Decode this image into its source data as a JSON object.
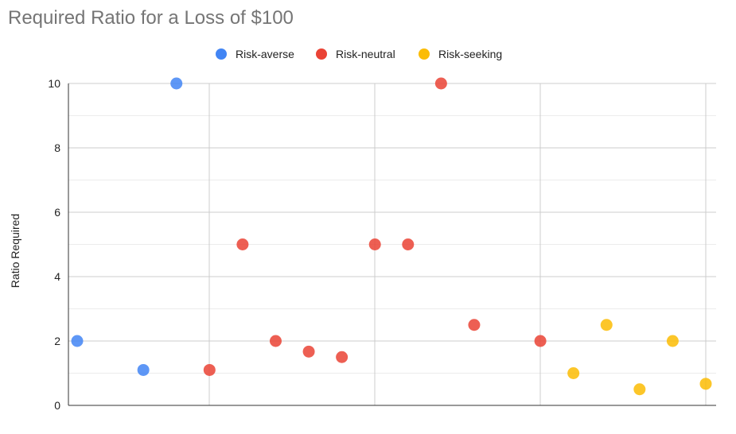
{
  "chart_data": {
    "type": "scatter",
    "title": "Required Ratio for a Loss of $100",
    "xlabel": "",
    "ylabel": "Ratio Required",
    "ylim": [
      0,
      10
    ],
    "y_ticks": [
      "0",
      "2",
      "4",
      "6",
      "8",
      "10"
    ],
    "grid": true,
    "legend_position": "top",
    "series": [
      {
        "name": "Risk-averse",
        "color": "#4285f4",
        "points": [
          {
            "x": 1,
            "y": 2
          },
          {
            "x": 3,
            "y": 1.1
          },
          {
            "x": 4,
            "y": 10
          }
        ]
      },
      {
        "name": "Risk-neutral",
        "color": "#ea4335",
        "points": [
          {
            "x": 5,
            "y": 1.1
          },
          {
            "x": 6,
            "y": 5
          },
          {
            "x": 7,
            "y": 2
          },
          {
            "x": 8,
            "y": 1.67
          },
          {
            "x": 9,
            "y": 1.5
          },
          {
            "x": 10,
            "y": 5
          },
          {
            "x": 11,
            "y": 5
          },
          {
            "x": 12,
            "y": 10
          },
          {
            "x": 13,
            "y": 2.5
          },
          {
            "x": 15,
            "y": 2
          }
        ]
      },
      {
        "name": "Risk-seeking",
        "color": "#fbbc04",
        "points": [
          {
            "x": 16,
            "y": 1
          },
          {
            "x": 17,
            "y": 2.5
          },
          {
            "x": 18,
            "y": 0.5
          },
          {
            "x": 19,
            "y": 2
          },
          {
            "x": 20,
            "y": 0.67
          }
        ]
      }
    ]
  }
}
